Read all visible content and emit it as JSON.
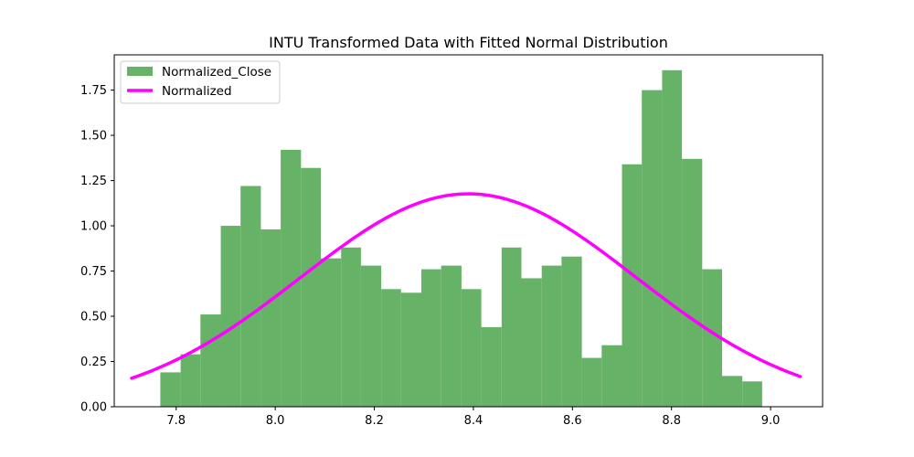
{
  "chart_data": {
    "type": "bar",
    "title": "INTU Transformed Data with Fitted Normal Distribution",
    "xlabel": "",
    "ylabel": "",
    "xlim": [
      7.675,
      9.105
    ],
    "ylim": [
      0,
      1.945
    ],
    "x_ticks": [
      7.8,
      8.0,
      8.2,
      8.4,
      8.6,
      8.8,
      9.0
    ],
    "x_tick_labels": [
      "7.8",
      "8.0",
      "8.2",
      "8.4",
      "8.6",
      "8.8",
      "9.0"
    ],
    "y_ticks": [
      0,
      0.25,
      0.5,
      0.75,
      1.0,
      1.25,
      1.5,
      1.75
    ],
    "y_tick_labels": [
      "0.00",
      "0.25",
      "0.50",
      "0.75",
      "1.00",
      "1.25",
      "1.50",
      "1.75"
    ],
    "grid": false,
    "legend_position": "top-left",
    "series": [
      {
        "name": "Normalized_Close",
        "kind": "histogram",
        "color": "#66b266",
        "bin_edges": [
          7.768,
          7.809,
          7.849,
          7.89,
          7.93,
          7.971,
          8.011,
          8.052,
          8.092,
          8.133,
          8.173,
          8.214,
          8.254,
          8.295,
          8.335,
          8.376,
          8.416,
          8.457,
          8.497,
          8.538,
          8.578,
          8.619,
          8.659,
          8.7,
          8.74,
          8.781,
          8.821,
          8.862,
          8.902,
          8.943,
          8.983
        ],
        "values": [
          0.19,
          0.29,
          0.51,
          1.0,
          1.22,
          0.98,
          1.42,
          1.32,
          0.82,
          0.88,
          0.78,
          0.65,
          0.63,
          0.76,
          0.78,
          0.65,
          0.44,
          0.88,
          0.71,
          0.78,
          0.83,
          0.27,
          0.34,
          1.34,
          1.75,
          1.86,
          1.37,
          0.76,
          0.17,
          0.14
        ]
      },
      {
        "name": "Normalized",
        "kind": "line",
        "color": "#ff00ff",
        "mean": 8.39,
        "std": 0.339,
        "x_range": [
          7.71,
          9.06
        ]
      }
    ]
  }
}
